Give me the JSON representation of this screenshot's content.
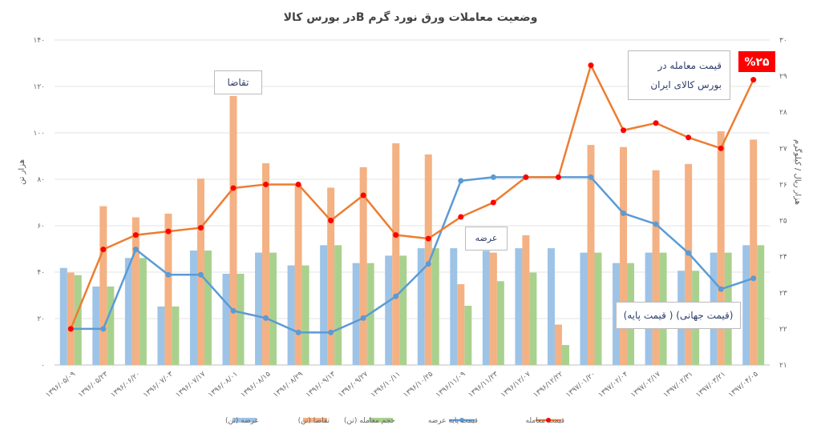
{
  "chart_data": {
    "type": "bar",
    "title": "وضعیت معاملات ورق نورد گرم   Bدر بورس کالا",
    "ylabel": "هزار تن",
    "y2label": "هزار ریال / کیلوگرم",
    "ylim": [
      0,
      140
    ],
    "y2lim": [
      21,
      30
    ],
    "yticks": [
      "۰",
      "۲۰",
      "۴۰",
      "۶۰",
      "۸۰",
      "۱۰۰",
      "۱۲۰",
      "۱۴۰"
    ],
    "y2ticks": [
      "۲۱",
      "۲۲",
      "۲۳",
      "۲۴",
      "۲۵",
      "۲۶",
      "۲۷",
      "۲۸",
      "۲۹",
      "۳۰"
    ],
    "grid": true,
    "legend_position": "bottom",
    "categories": [
      "۱۳۹۶/۰۵/۰۹",
      "۱۳۹۶/۰۵/۲۳",
      "۱۳۹۶/۰۶/۲۰",
      "۱۳۹۶/۰۷/۰۳",
      "۱۳۹۶/۰۷/۱۷",
      "۱۳۹۶/۰۸/۰۱",
      "۱۳۹۶/۰۸/۱۵",
      "۱۳۹۶/۰۸/۲۹",
      "۱۳۹۶/۰۹/۱۳",
      "۱۳۹۶/۰۹/۲۷",
      "۱۳۹۶/۱۰/۱۱",
      "۱۳۹۶/۱۰/۲۵",
      "۱۳۹۶/۱۱/۰۹",
      "۱۳۹۶/۱۱/۲۳",
      "۱۳۹۶/۱۲/۰۷",
      "۱۳۹۶/۱۲/۲۲",
      "۱۳۹۷/۰۱/۲۰",
      "۱۳۹۷/۰۲/۰۴",
      "۱۳۹۷/۰۲/۱۷",
      "۱۳۹۷/۰۲/۳۱",
      "۱۳۹۷/۰۳/۲۱",
      "۱۳۹۷/۰۴/۰۵"
    ],
    "series": [
      {
        "name": "عرضه (تن)",
        "type": "bar",
        "axis": "left",
        "color": "#9DC3E6",
        "values": [
          41.8,
          33.8,
          46.1,
          25.2,
          49.3,
          39.3,
          48.4,
          42.9,
          51.6,
          43.9,
          47.1,
          50.3,
          50.3,
          49.2,
          50.3,
          50.3,
          48.4,
          43.9,
          48.4,
          40.6,
          48.4,
          51.6
        ]
      },
      {
        "name": "تقاضا (تن)",
        "type": "bar",
        "axis": "left",
        "color": "#F4B183",
        "values": [
          39.8,
          68.4,
          63.6,
          65.2,
          80.3,
          115.9,
          86.9,
          77.7,
          76.4,
          85.2,
          95.5,
          90.7,
          34.8,
          48.4,
          55.9,
          17.4,
          94.8,
          93.9,
          83.9,
          86.6,
          100.7,
          97.1
        ]
      },
      {
        "name": "حجم معامله (تن)",
        "type": "bar",
        "axis": "left",
        "color": "#A9D18E",
        "values": [
          38.7,
          33.8,
          46.1,
          25.2,
          49.3,
          39.3,
          48.4,
          42.9,
          51.6,
          43.9,
          47.1,
          50.3,
          25.5,
          36.1,
          39.8,
          8.6,
          48.4,
          43.9,
          48.4,
          40.6,
          48.4,
          51.6
        ]
      },
      {
        "name": "قیمت پایه عرضه",
        "type": "line",
        "axis": "right",
        "color": "#5B9BD5",
        "marker": "#5B9BD5",
        "values": [
          22.0,
          22.0,
          24.2,
          23.5,
          23.5,
          22.5,
          22.3,
          21.9,
          21.9,
          22.3,
          22.9,
          23.8,
          26.1,
          26.2,
          26.2,
          26.2,
          26.2,
          25.2,
          24.9,
          24.1,
          23.1,
          23.4
        ]
      },
      {
        "name": "قیمت معامله",
        "type": "line",
        "axis": "right",
        "color": "#ED7D31",
        "marker": "#FF0000",
        "values": [
          22.0,
          24.2,
          24.6,
          24.7,
          24.8,
          25.9,
          26.0,
          26.0,
          25.0,
          25.7,
          24.6,
          24.5,
          25.1,
          25.5,
          26.2,
          26.2,
          29.3,
          27.5,
          27.7,
          27.3,
          27.0,
          28.9
        ]
      }
    ],
    "annotations": {
      "demand": "تقاضا",
      "supply": "عرضه",
      "trade_price": "قیمت معامله در بورس کالای ایران",
      "percent": "%۲۵",
      "percent_color": "#FF0000",
      "base_price": "(قیمت جهانی) ( قیمت پایه)"
    }
  }
}
